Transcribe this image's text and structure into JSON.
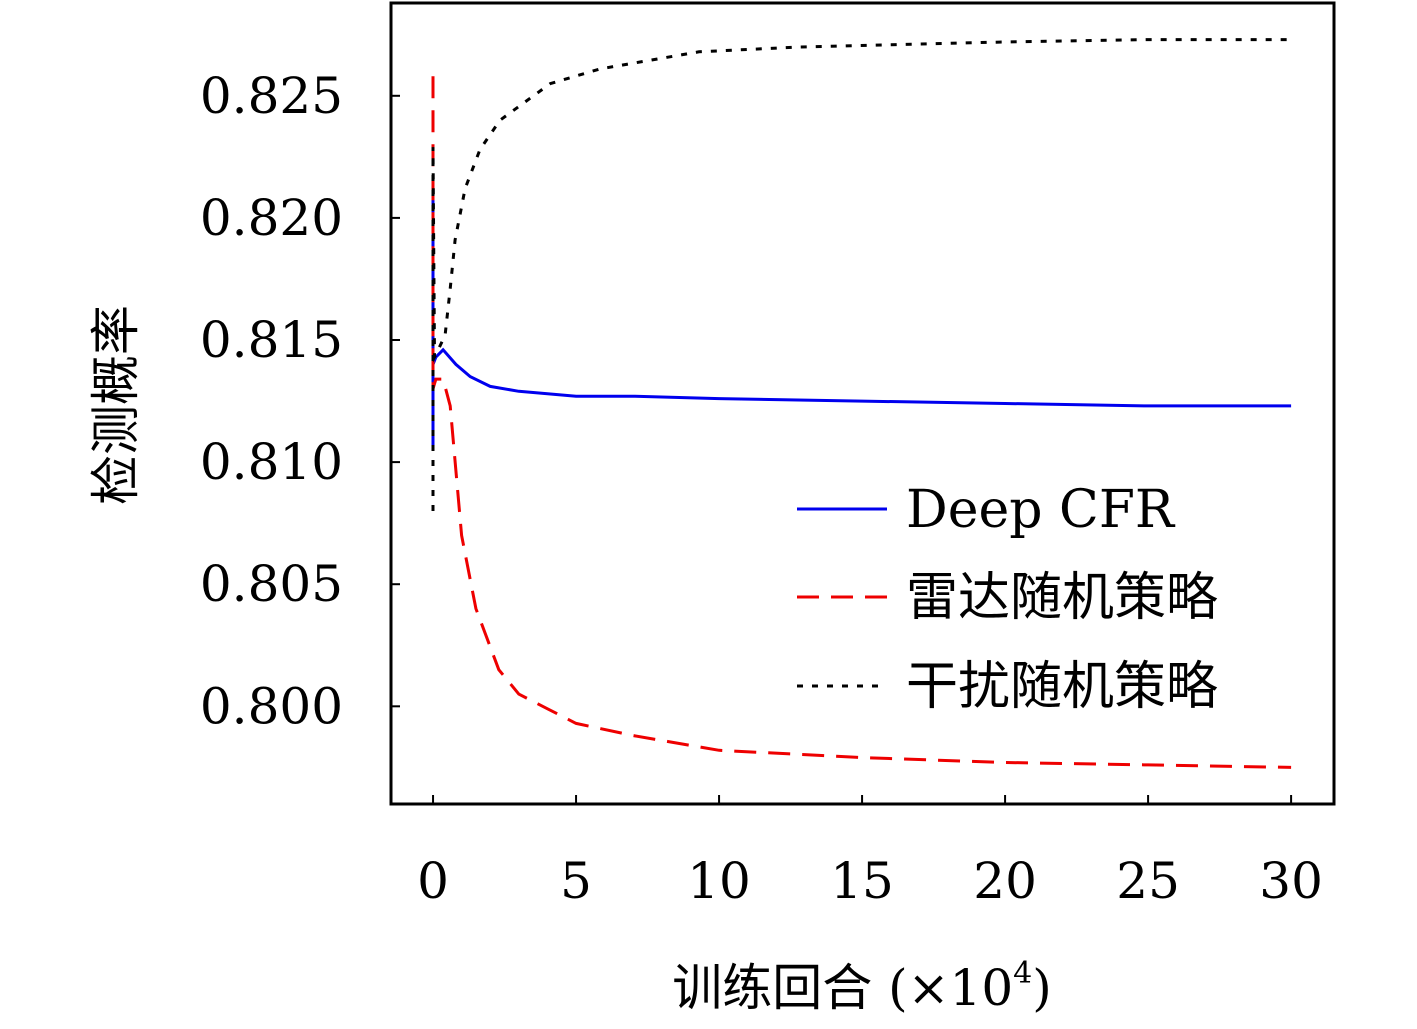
{
  "chart_data": {
    "type": "line",
    "title": "",
    "xlabel": "训练回合 (×10⁴)",
    "xlabel_main": "训练回合 (×10",
    "xlabel_sup": "4",
    "xlabel_close": ")",
    "ylabel": "检测概率",
    "xlim": [
      -1.47,
      31.5
    ],
    "ylim": [
      0.796,
      0.8288
    ],
    "xticks": [
      0,
      5,
      10,
      15,
      20,
      25,
      30
    ],
    "xtick_labels": [
      "0",
      "5",
      "10",
      "15",
      "20",
      "25",
      "30"
    ],
    "yticks": [
      0.8,
      0.805,
      0.81,
      0.815,
      0.82,
      0.825
    ],
    "ytick_labels": [
      "0.800",
      "0.805",
      "0.810",
      "0.815",
      "0.820",
      "0.825"
    ],
    "grid": false,
    "legend_position": "center-right",
    "series": [
      {
        "name": "Deep CFR",
        "color": "#0000ee",
        "dash": "solid",
        "x": [
          0,
          0,
          0,
          0.1,
          0.35,
          0.8,
          1.3,
          2,
          3,
          4,
          5,
          7,
          10,
          15,
          20,
          25,
          30
        ],
        "y": [
          0.8105,
          0.8215,
          0.814,
          0.8143,
          0.8146,
          0.814,
          0.8135,
          0.8131,
          0.8129,
          0.8128,
          0.8127,
          0.8127,
          0.8126,
          0.8125,
          0.8124,
          0.8123,
          0.8123
        ]
      },
      {
        "name": "雷达随机策略",
        "color": "#ee0000",
        "dash": "dashed",
        "x": [
          0,
          0,
          0.1,
          0.35,
          0.6,
          1.0,
          1.5,
          2.3,
          3,
          4,
          5,
          7,
          10,
          15,
          20,
          25,
          30
        ],
        "y": [
          0.8258,
          0.813,
          0.8134,
          0.8134,
          0.8123,
          0.807,
          0.804,
          0.8015,
          0.8005,
          0.7999,
          0.7993,
          0.7988,
          0.7982,
          0.7979,
          0.7977,
          0.7976,
          0.7975
        ]
      },
      {
        "name": "干扰随机策略",
        "color": "#000000",
        "dash": "dotted",
        "x": [
          0,
          0,
          0.05,
          0.1,
          0.42,
          0.6,
          0.77,
          1.12,
          1.64,
          2.34,
          4.1,
          5.84,
          9.3,
          12.8,
          19.8,
          25,
          30
        ],
        "y": [
          0.808,
          0.8229,
          0.8143,
          0.8144,
          0.8152,
          0.8171,
          0.8191,
          0.8212,
          0.8228,
          0.824,
          0.8255,
          0.8261,
          0.8268,
          0.827,
          0.8272,
          0.8273,
          0.8273
        ]
      }
    ]
  }
}
